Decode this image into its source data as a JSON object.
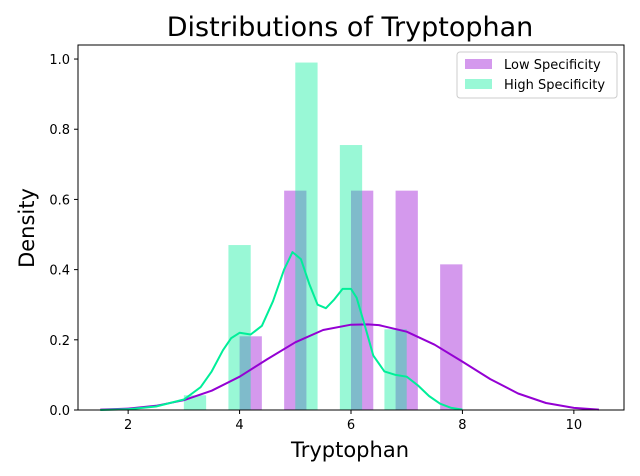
{
  "chart_data": {
    "type": "bar",
    "title": "Distributions of Tryptophan",
    "xlabel": "Tryptophan",
    "ylabel": "Density",
    "xlim": [
      1.1,
      10.9
    ],
    "ylim": [
      0.0,
      1.04
    ],
    "xticks": [
      2,
      4,
      6,
      8,
      10
    ],
    "yticks": [
      0.0,
      0.2,
      0.4,
      0.6,
      0.8,
      1.0
    ],
    "xtick_labels": [
      "2",
      "4",
      "6",
      "8",
      "10"
    ],
    "ytick_labels": [
      "0.0",
      "0.2",
      "0.4",
      "0.6",
      "0.8",
      "1.0"
    ],
    "grid": false,
    "legend_position": "top-right",
    "series": [
      {
        "name": "Low Specificity",
        "color": "#9400d3",
        "bar_alpha": 0.4,
        "bins": [
          {
            "x0": 4.0,
            "x1": 4.4,
            "height": 0.21
          },
          {
            "x0": 4.8,
            "x1": 5.2,
            "height": 0.625
          },
          {
            "x0": 6.0,
            "x1": 6.4,
            "height": 0.625
          },
          {
            "x0": 6.8,
            "x1": 7.2,
            "height": 0.625
          },
          {
            "x0": 7.6,
            "x1": 8.0,
            "height": 0.415
          }
        ],
        "kde": {
          "x": [
            1.5,
            2.0,
            2.5,
            3.0,
            3.5,
            4.0,
            4.5,
            5.0,
            5.5,
            6.0,
            6.3,
            6.5,
            7.0,
            7.5,
            8.0,
            8.5,
            9.0,
            9.5,
            10.0,
            10.45
          ],
          "y": [
            0.001,
            0.004,
            0.012,
            0.028,
            0.055,
            0.095,
            0.145,
            0.193,
            0.228,
            0.243,
            0.244,
            0.242,
            0.223,
            0.186,
            0.138,
            0.088,
            0.047,
            0.02,
            0.006,
            0.001
          ]
        }
      },
      {
        "name": "High Specificity",
        "color": "#00ee99",
        "bar_alpha": 0.4,
        "bins": [
          {
            "x0": 3.0,
            "x1": 3.4,
            "height": 0.042
          },
          {
            "x0": 3.8,
            "x1": 4.2,
            "height": 0.47
          },
          {
            "x0": 5.0,
            "x1": 5.4,
            "height": 0.99
          },
          {
            "x0": 5.8,
            "x1": 6.2,
            "height": 0.755
          },
          {
            "x0": 6.6,
            "x1": 7.0,
            "height": 0.23
          }
        ],
        "kde": {
          "x": [
            1.5,
            2.0,
            2.5,
            3.0,
            3.3,
            3.5,
            3.7,
            3.85,
            4.0,
            4.2,
            4.4,
            4.6,
            4.8,
            4.95,
            5.1,
            5.25,
            5.4,
            5.55,
            5.7,
            5.85,
            6.0,
            6.1,
            6.25,
            6.4,
            6.6,
            6.8,
            7.0,
            7.2,
            7.4,
            7.6,
            7.8,
            8.0
          ],
          "y": [
            0.0,
            0.002,
            0.01,
            0.03,
            0.065,
            0.11,
            0.17,
            0.205,
            0.22,
            0.215,
            0.24,
            0.31,
            0.4,
            0.45,
            0.43,
            0.36,
            0.3,
            0.29,
            0.315,
            0.345,
            0.345,
            0.32,
            0.24,
            0.155,
            0.11,
            0.1,
            0.095,
            0.07,
            0.04,
            0.018,
            0.006,
            0.001
          ]
        }
      }
    ]
  }
}
